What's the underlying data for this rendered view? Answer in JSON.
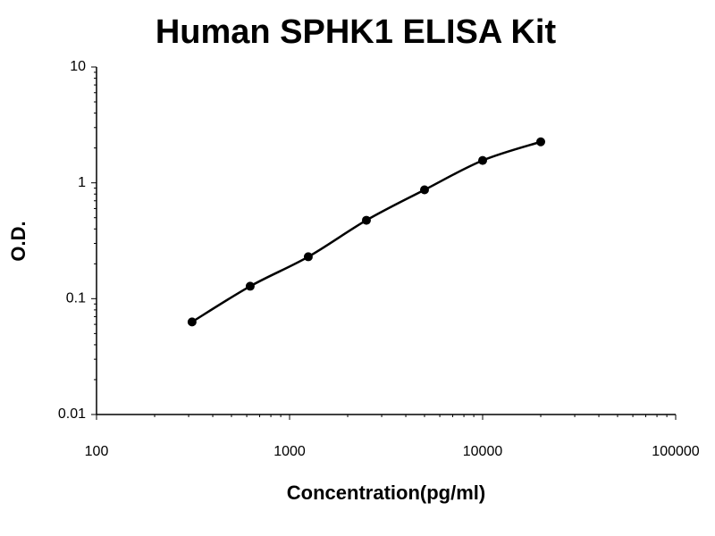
{
  "chart_data": {
    "type": "scatter",
    "title": "Human SPHK1 ELISA Kit",
    "x_label": "Concentration(pg/ml)",
    "y_label": "O.D.",
    "x": [
      312.5,
      625,
      1250,
      2500,
      5000,
      10000,
      20000
    ],
    "values": [
      0.063,
      0.128,
      0.23,
      0.475,
      0.87,
      1.56,
      2.26
    ],
    "color": "#000000",
    "trendline": true,
    "xlog": true,
    "ylog": true,
    "xlim": [
      100,
      100000
    ],
    "xticks": [
      100,
      1000,
      10000,
      100000
    ],
    "ylim": [
      0.01,
      10
    ],
    "yticks": [
      0.01,
      0.1,
      1,
      10
    ]
  }
}
